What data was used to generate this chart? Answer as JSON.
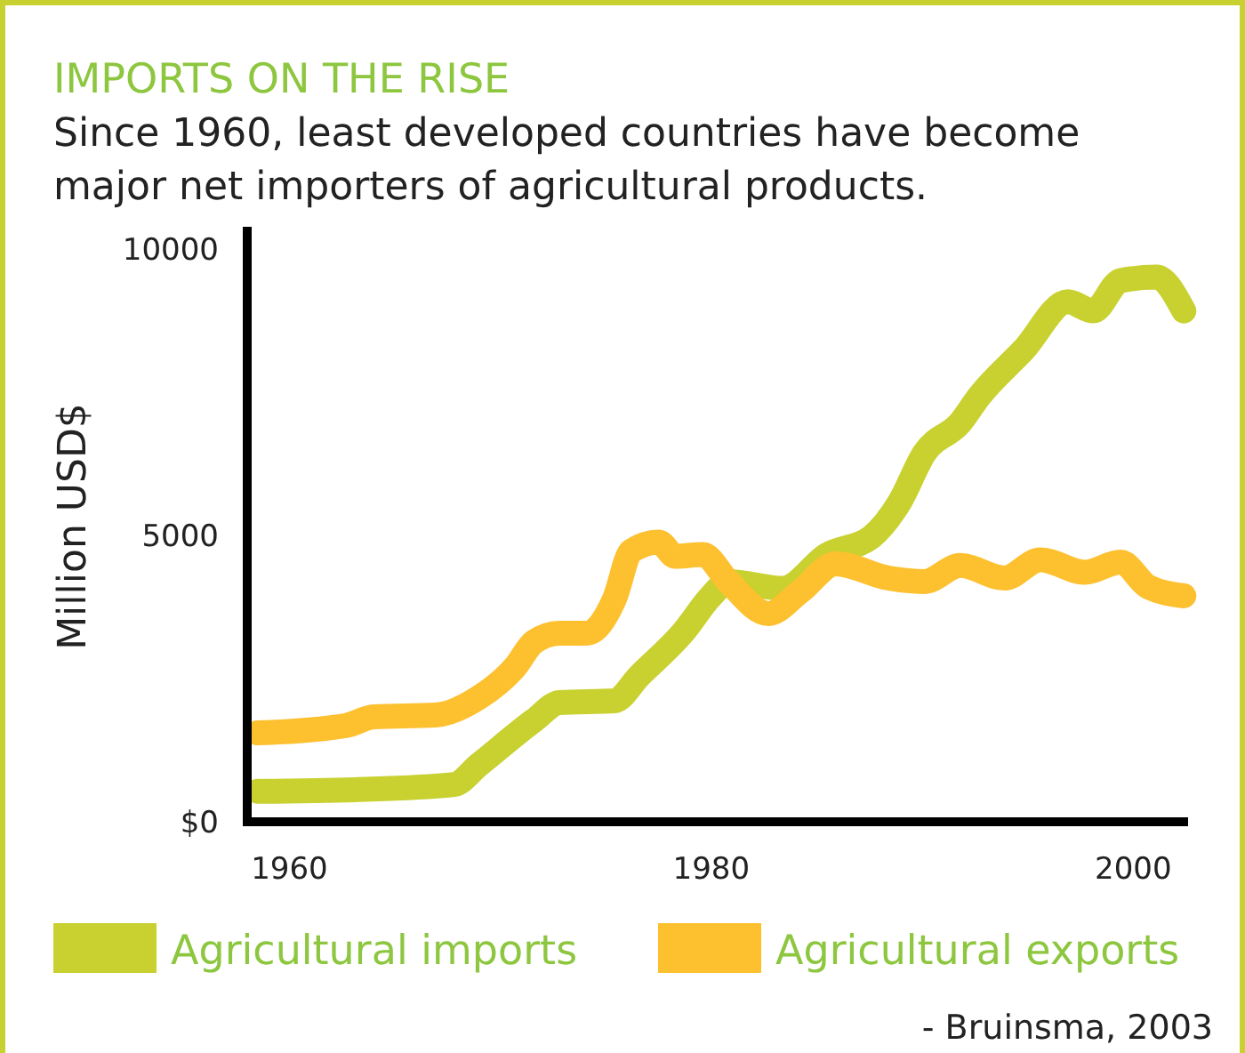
{
  "chart_data": {
    "type": "line",
    "title": "IMPORTS ON THE RISE",
    "subtitle": "Since 1960, least developed countries have become major net importers of agricultural products.",
    "ylabel": "Million USD$",
    "xlim": [
      1958,
      2002.6
    ],
    "ylim": [
      0,
      10300
    ],
    "xticks": [
      1960,
      1980,
      2000
    ],
    "yticks": [
      {
        "value": 0,
        "label": "$0"
      },
      5000,
      10000
    ],
    "grid": false,
    "legend": "bottom",
    "line_style": "solid",
    "marker": "none",
    "annotations": [
      "- Bruinsma, 2003"
    ],
    "series": [
      {
        "name": "Agricultural imports",
        "color": "#c8d130",
        "x": [
          1958.5,
          1963.1,
          1967.8,
          1969,
          1971.6,
          1972.8,
          1975.4,
          1976.6,
          1978.7,
          1980,
          1980.8,
          1983.4,
          1985.5,
          1987.6,
          1988.9,
          1990.1,
          1991.8,
          1992.7,
          1994.8,
          1996.9,
          1998.1,
          1999.4,
          2001.1,
          2002.4
        ],
        "values": [
          530,
          560,
          650,
          1000,
          1770,
          2080,
          2110,
          2550,
          3320,
          3940,
          4190,
          4070,
          4660,
          4970,
          5560,
          6430,
          6960,
          7420,
          8230,
          9070,
          8910,
          9440,
          9500,
          8910
        ]
      },
      {
        "name": "Agricultural exports",
        "color": "#fdc02f",
        "x": [
          1958.5,
          1962.7,
          1964,
          1966.9,
          1969,
          1970.7,
          1971.6,
          1972.8,
          1974.1,
          1975.4,
          1976.2,
          1977.5,
          1978.3,
          1979.6,
          1980.8,
          1982.7,
          1984.2,
          1985.9,
          1988.4,
          1990.1,
          1991.8,
          1993.9,
          1995.6,
          1997.7,
          1999.4,
          2000.7,
          2002.4
        ],
        "values": [
          1550,
          1680,
          1830,
          1860,
          2170,
          2700,
          3140,
          3290,
          3290,
          3880,
          4720,
          4880,
          4630,
          4660,
          4190,
          3630,
          4010,
          4500,
          4250,
          4190,
          4470,
          4250,
          4570,
          4350,
          4530,
          4100,
          3940
        ]
      }
    ]
  }
}
